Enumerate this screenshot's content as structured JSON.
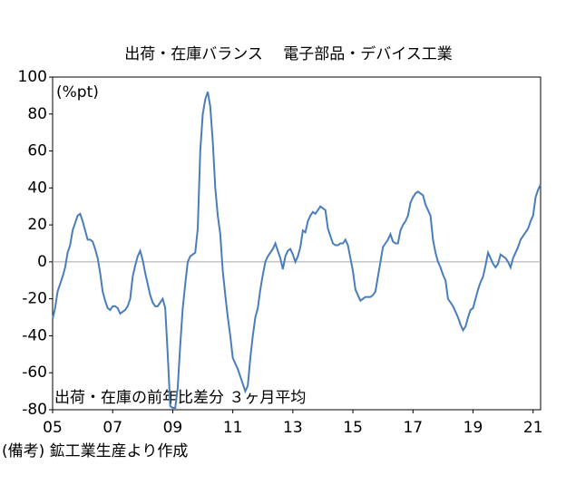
{
  "chart_data": {
    "type": "line",
    "title": "出荷・在庫バランス　 電子部品・デバイス工業",
    "y_unit_label": "(%pt)",
    "annotation": "出荷・在庫の前年比差分 ３ヶ月平均",
    "note": "(備考) 鉱工業生産より作成",
    "categories": [
      "05",
      null,
      null,
      null,
      null,
      null,
      null,
      null,
      null,
      null,
      null,
      null,
      null,
      null,
      null,
      null,
      null,
      null,
      null,
      null,
      null,
      null,
      null,
      null,
      "07",
      null,
      null,
      null,
      null,
      null,
      null,
      null,
      null,
      null,
      null,
      null,
      null,
      null,
      null,
      null,
      null,
      null,
      null,
      null,
      null,
      null,
      null,
      null,
      "09",
      null,
      null,
      null,
      null,
      null,
      null,
      null,
      null,
      null,
      null,
      null,
      null,
      null,
      null,
      null,
      null,
      null,
      null,
      null,
      null,
      null,
      null,
      null,
      "11",
      null,
      null,
      null,
      null,
      null,
      null,
      null,
      null,
      null,
      null,
      null,
      null,
      null,
      null,
      null,
      null,
      null,
      null,
      null,
      null,
      null,
      null,
      null,
      "13",
      null,
      null,
      null,
      null,
      null,
      null,
      null,
      null,
      null,
      null,
      null,
      null,
      null,
      null,
      null,
      null,
      null,
      null,
      null,
      null,
      null,
      null,
      null,
      "15",
      null,
      null,
      null,
      null,
      null,
      null,
      null,
      null,
      null,
      null,
      null,
      null,
      null,
      null,
      null,
      null,
      null,
      null,
      null,
      null,
      null,
      null,
      null,
      "17",
      null,
      null,
      null,
      null,
      null,
      null,
      null,
      null,
      null,
      null,
      null,
      null,
      null,
      null,
      null,
      null,
      null,
      null,
      null,
      null,
      null,
      null,
      null,
      "19",
      null,
      null,
      null,
      null,
      null,
      null,
      null,
      null,
      null,
      null,
      null,
      null,
      null,
      null,
      null,
      null,
      null,
      null,
      null,
      null,
      null,
      null,
      null,
      "21",
      null,
      null,
      null
    ],
    "series": [
      {
        "color": "#4a7ebb",
        "values": [
          -31,
          -25,
          -16,
          -12,
          -8,
          -3,
          5,
          9,
          17,
          21,
          25,
          26,
          22,
          17,
          12,
          12,
          11,
          7,
          2,
          -6,
          -16,
          -21,
          -25,
          -26,
          -24,
          -24,
          -25,
          -28,
          -27,
          -26,
          -24,
          -20,
          -8,
          -2,
          3,
          6,
          1,
          -6,
          -12,
          -18,
          -22,
          -24,
          -24,
          -22,
          -20,
          -25,
          -50,
          -78,
          -79,
          -79,
          -68,
          -45,
          -25,
          -12,
          0,
          3,
          4,
          5,
          18,
          60,
          80,
          88,
          92,
          84,
          65,
          40,
          25,
          15,
          -5,
          -18,
          -30,
          -40,
          -52,
          -55,
          -58,
          -62,
          -66,
          -70,
          -67,
          -52,
          -40,
          -30,
          -25,
          -15,
          -7,
          0,
          3,
          5,
          7,
          10,
          6,
          2,
          -4,
          3,
          6,
          7,
          4,
          0,
          3,
          8,
          17,
          16,
          22,
          25,
          27,
          26,
          28,
          30,
          29,
          28,
          18,
          14,
          10,
          9,
          9,
          10,
          10,
          12,
          9,
          2,
          -5,
          -15,
          -18,
          -21,
          -20,
          -19,
          -19,
          -19,
          -18,
          -16,
          -8,
          0,
          8,
          10,
          12,
          15,
          11,
          10,
          10,
          17,
          20,
          22,
          25,
          32,
          35,
          37,
          38,
          37,
          36,
          31,
          28,
          25,
          12,
          5,
          0,
          -3,
          -7,
          -10,
          -20,
          -22,
          -24,
          -27,
          -30,
          -34,
          -37,
          -35,
          -30,
          -26,
          -25,
          -20,
          -15,
          -11,
          -8,
          -2,
          5,
          2,
          -1,
          -3,
          -1,
          4,
          3,
          2,
          0,
          -3,
          2,
          5,
          8,
          12,
          14,
          16,
          18,
          22,
          25,
          35,
          39,
          42
        ]
      }
    ],
    "ylim": [
      -80,
      100
    ],
    "yticks": [
      -80,
      -60,
      -40,
      -20,
      0,
      20,
      40,
      60,
      80,
      100
    ],
    "zero_line_color": "#a6a6a6"
  }
}
